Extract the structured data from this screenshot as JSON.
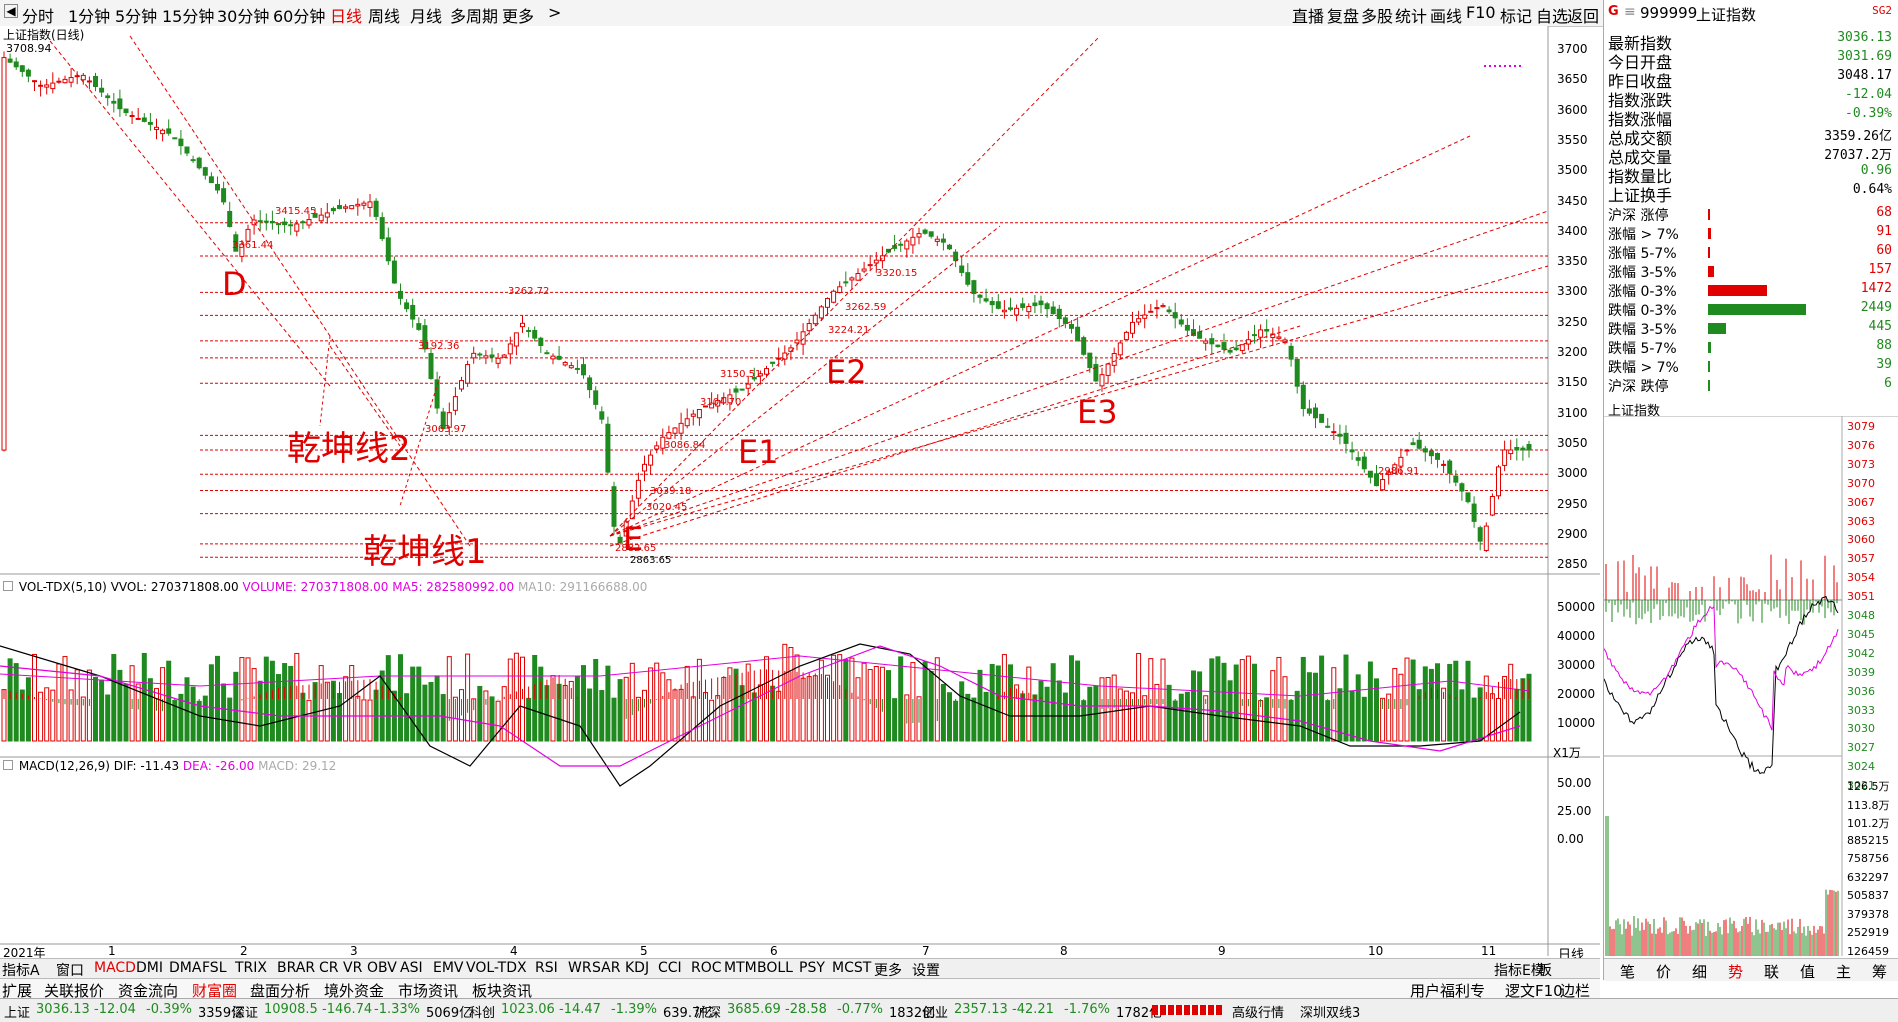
{
  "toolbar": {
    "periods": [
      "分时",
      "1分钟",
      "5分钟",
      "15分钟",
      "30分钟",
      "60分钟",
      "日线",
      "周线",
      "月线",
      "多周期",
      "更多"
    ],
    "active_period": "日线",
    "right_tools": [
      "直播",
      "复盘",
      "多股",
      "统计",
      "画线",
      "F10",
      "标记",
      "自选",
      "返回"
    ]
  },
  "chart_title": "上证指数(日线)",
  "price_axis": [
    "3700",
    "3650",
    "3600",
    "3550",
    "3500",
    "3450",
    "3400",
    "3350",
    "3300",
    "3250",
    "3200",
    "3150",
    "3100",
    "3050",
    "3000",
    "2950",
    "2900",
    "2850"
  ],
  "price_marks": [
    "3708.94",
    "3415.45",
    "3361.44",
    "3262.72",
    "3192.36",
    "3063.97",
    "3150.51",
    "3104.70",
    "3224.21",
    "3320.15",
    "3262.59",
    "3086.84",
    "3039.18",
    "3020.45",
    "2882.65",
    "2863.65",
    "2986.91"
  ],
  "annotations": {
    "d": "D",
    "e": "E",
    "e1": "E1",
    "e2": "E2",
    "e3": "E3",
    "line1": "乾坤线1",
    "line2": "乾坤线2"
  },
  "volume": {
    "title": "VOL-TDX(5,10)",
    "vol": "VVOL: 270371808.00",
    "volume": "VOLUME: 270371808.00",
    "ma5": "MA5: 282580992.00",
    "ma10": "MA10: 291166688.00",
    "axis": [
      "50000",
      "40000",
      "30000",
      "20000",
      "10000"
    ],
    "unit": "X1万"
  },
  "macd": {
    "title": "MACD(12,26,9)",
    "dif": "DIF: -11.43",
    "dea": "DEA: -26.00",
    "macd": "MACD: 29.12",
    "axis": [
      "50.00",
      "25.00",
      "0.00"
    ]
  },
  "date_axis": [
    "2021年",
    "1",
    "2",
    "3",
    "4",
    "5",
    "6",
    "7",
    "8",
    "9",
    "10",
    "11"
  ],
  "date_axis_right": "日线",
  "indicator_tabs": [
    "指标A",
    "窗口",
    "MACD",
    "DMI",
    "DMA",
    "FSL",
    "TRIX",
    "BRAR",
    "CR",
    "VR",
    "OBV",
    "ASI",
    "EMV",
    "VOL-TDX",
    "RSI",
    "WR",
    "SAR",
    "KDJ",
    "CCI",
    "ROC",
    "MTM",
    "BOLL",
    "PSY",
    "MCST",
    "更多",
    "设置"
  ],
  "indicator_tabs_right": [
    "指标E模",
    "板"
  ],
  "function_tabs": [
    "扩展",
    "关联报价",
    "资金流向",
    "财富圈",
    "盘面分析",
    "境外资金",
    "市场资讯",
    "板块资讯"
  ],
  "function_tabs_right": [
    "用户福利专",
    "逻文F10",
    "边栏"
  ],
  "quote": {
    "header_code": "999999",
    "header_name": "上证指数",
    "header_tag": "SG2",
    "rows": [
      {
        "label": "最新指数",
        "value": "3036.13",
        "color": "#1f8a1f"
      },
      {
        "label": "今日开盘",
        "value": "3031.69",
        "color": "#1f8a1f"
      },
      {
        "label": "昨日收盘",
        "value": "3048.17",
        "color": "#000000"
      },
      {
        "label": "指数涨跌",
        "value": "-12.04",
        "color": "#1f8a1f"
      },
      {
        "label": "指数涨幅",
        "value": "-0.39%",
        "color": "#1f8a1f"
      },
      {
        "label": "总成交额",
        "value": "3359.26亿",
        "color": "#000000"
      },
      {
        "label": "总成交量",
        "value": "27037.2万",
        "color": "#000000"
      },
      {
        "label": "指数量比",
        "value": "0.96",
        "color": "#1f8a1f"
      },
      {
        "label": "上证换手",
        "value": "0.64%",
        "color": "#000000"
      }
    ],
    "breadth": [
      {
        "label": "沪深 涨停",
        "value": "68",
        "color": "#e00000",
        "bar": 0.01
      },
      {
        "label": "涨幅 > 7%",
        "value": "91",
        "color": "#e00000",
        "bar": 0.02
      },
      {
        "label": "涨幅 5-7%",
        "value": "60",
        "color": "#e00000",
        "bar": 0.01
      },
      {
        "label": "涨幅 3-5%",
        "value": "157",
        "color": "#e00000",
        "bar": 0.04
      },
      {
        "label": "涨幅 0-3%",
        "value": "1472",
        "color": "#e00000",
        "bar": 0.42
      },
      {
        "label": "跌幅 0-3%",
        "value": "2449",
        "color": "#1f8a1f",
        "bar": 0.7
      },
      {
        "label": "跌幅 3-5%",
        "value": "445",
        "color": "#1f8a1f",
        "bar": 0.13
      },
      {
        "label": "跌幅 5-7%",
        "value": "88",
        "color": "#1f8a1f",
        "bar": 0.02
      },
      {
        "label": "跌幅 > 7%",
        "value": "39",
        "color": "#1f8a1f",
        "bar": 0.01
      },
      {
        "label": "沪深 跌停",
        "value": "6",
        "color": "#1f8a1f",
        "bar": 0.005
      }
    ],
    "mini_title": "上证指数",
    "mini_axis": [
      "3079",
      "3076",
      "3073",
      "3070",
      "3067",
      "3063",
      "3060",
      "3057",
      "3054",
      "3051",
      "3048",
      "3045",
      "3042",
      "3039",
      "3036",
      "3033",
      "3030",
      "3027",
      "3024",
      "3021"
    ],
    "mini_vol_axis": [
      "126.5万",
      "113.8万",
      "101.2万",
      "885215",
      "758756",
      "632297",
      "505837",
      "379378",
      "252919",
      "126459"
    ],
    "bottom_tabs": [
      "笔",
      "价",
      "细",
      "势",
      "联",
      "值",
      "主",
      "筹"
    ],
    "active_bottom_tab": "势"
  },
  "status": {
    "sh": {
      "name": "上证",
      "price": "3036.13",
      "chg": "-12.04",
      "pct": "-0.39%",
      "amt": "3359亿"
    },
    "sz": {
      "name": "深证",
      "price": "10908.5",
      "chg": "-146.74",
      "pct": "-1.33%",
      "amt": "5069亿"
    },
    "kc": {
      "name": "科创",
      "price": "1023.06",
      "chg": "-14.47",
      "pct": "-1.39%",
      "amt": "639.7亿"
    },
    "hs": {
      "name": "沪深",
      "price": "3685.69",
      "chg": "-28.58",
      "pct": "-0.77%",
      "amt": "1832亿"
    },
    "cy": {
      "name": "创业",
      "price": "2357.13",
      "chg": "-42.21",
      "pct": "-1.76%",
      "amt": "1782亿"
    },
    "extra": [
      "高级行情",
      "深圳双线3"
    ]
  }
}
